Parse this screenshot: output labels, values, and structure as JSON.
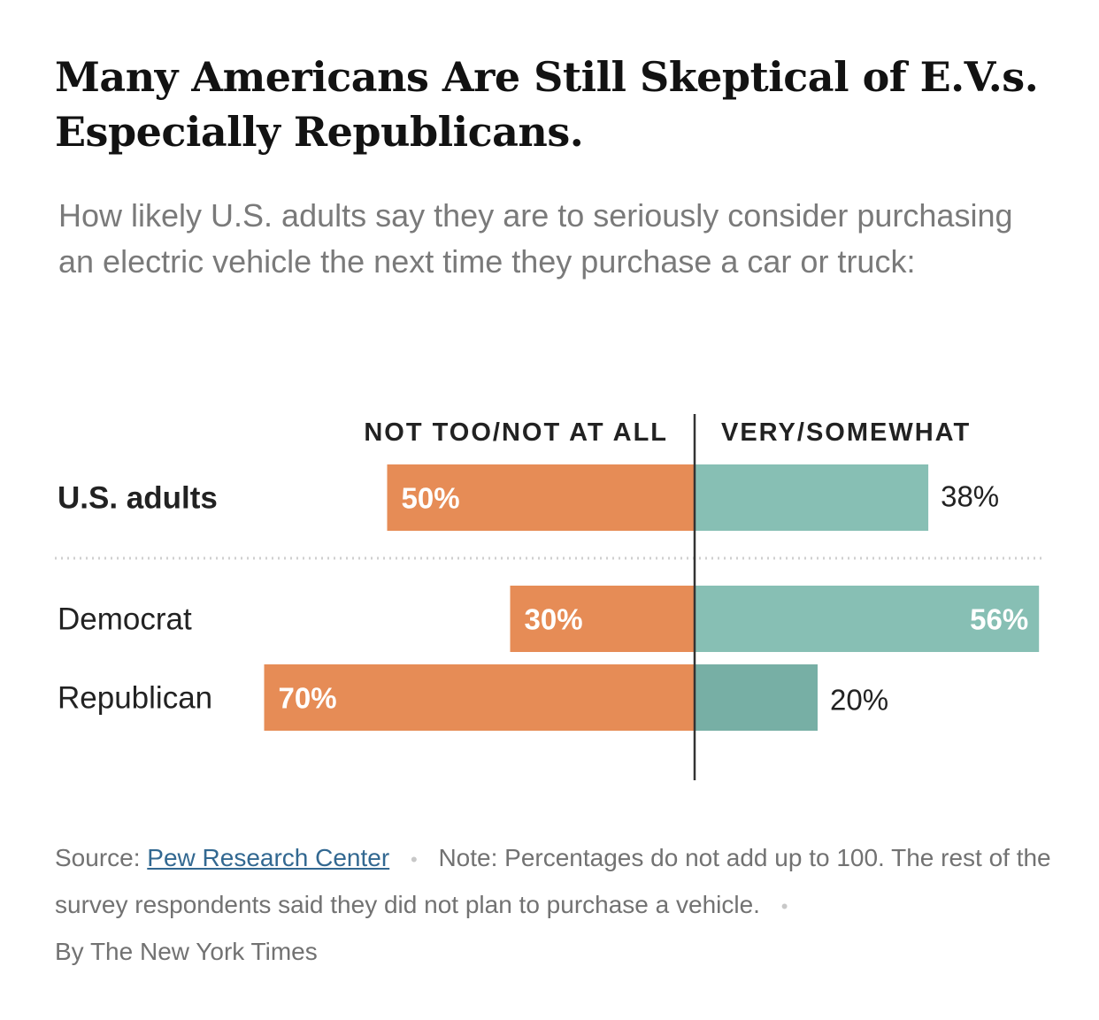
{
  "header": {
    "title_line1": "Many Americans Are Still Skeptical of E.V.s.",
    "title_line2": "Especially Republicans.",
    "subtitle": "How likely U.S. adults say they are to seriously consider purchasing an electric vehicle the next time they purchase a car or truck:"
  },
  "chart_data": {
    "type": "bar",
    "orientation": "diverging-horizontal",
    "columns": {
      "left": "NOT TOO/NOT AT ALL",
      "right": "VERY/SOMEWHAT"
    },
    "categories": [
      "U.S. adults",
      "Democrat",
      "Republican"
    ],
    "series": [
      {
        "name": "NOT TOO/NOT AT ALL",
        "values": [
          50,
          30,
          70
        ],
        "labels": [
          "50%",
          "30%",
          "70%"
        ]
      },
      {
        "name": "VERY/SOMEWHAT",
        "values": [
          38,
          56,
          20
        ],
        "labels": [
          "38%",
          "56%",
          "20%"
        ]
      }
    ],
    "colors": {
      "left": "#e68c56",
      "right": "#87bfb4",
      "right_dark": "#77afa5",
      "axis": "#333333"
    }
  },
  "footer": {
    "source_label": "Source:",
    "source_link": "Pew Research Center",
    "note": "Note: Percentages do not add up to 100. The rest of the survey respondents said they did not plan to purchase a vehicle.",
    "byline": "By The New York Times"
  }
}
